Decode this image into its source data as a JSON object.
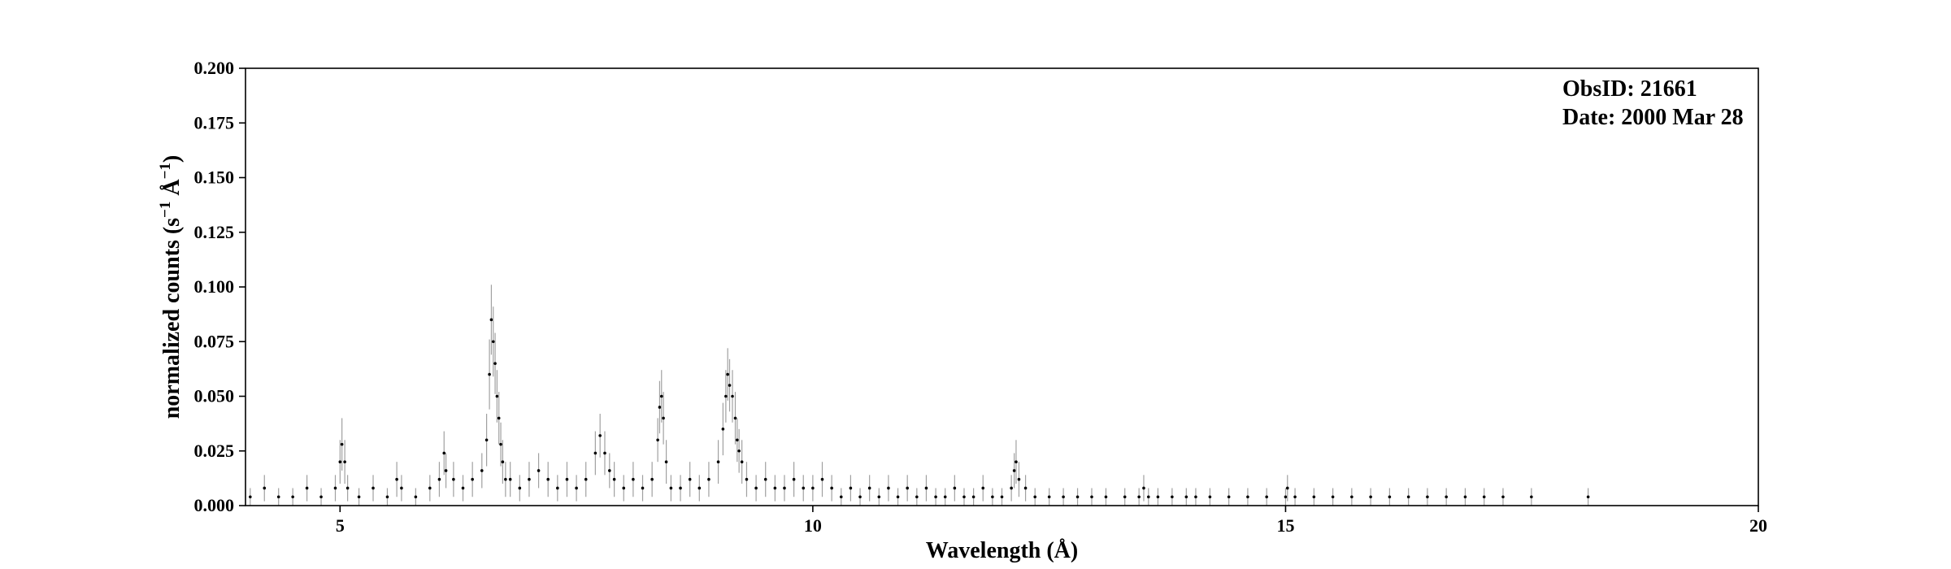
{
  "chart_data": {
    "type": "scatter",
    "title": "",
    "xlabel": "Wavelength (Å)",
    "ylabel_main": "normalized counts (s",
    "ylabel_sup1": "−1",
    "ylabel_mid": " Å",
    "ylabel_sup2": "−1",
    "ylabel_end": ")",
    "xlim": [
      4,
      20
    ],
    "ylim": [
      0,
      0.2
    ],
    "xticks": [
      5,
      10,
      15,
      20
    ],
    "xtick_labels": [
      "5",
      "10",
      "15",
      "20"
    ],
    "yticks": [
      0,
      0.025,
      0.05,
      0.075,
      0.1,
      0.125,
      0.15,
      0.175,
      0.2
    ],
    "ytick_labels": [
      "0.000",
      "0.025",
      "0.050",
      "0.075",
      "0.100",
      "0.125",
      "0.150",
      "0.175",
      "0.200"
    ],
    "annotations": [
      "ObsID: 21661",
      "Date: 2000 Mar 28"
    ],
    "grid": false,
    "point_color": "#000000",
    "errorbar_color": "#a0a0a0",
    "series": [
      {
        "x": [
          4.05,
          4.2,
          4.35,
          4.5,
          4.65,
          4.8,
          4.95,
          5.0,
          5.02,
          5.05,
          5.08,
          5.2,
          5.35,
          5.5,
          5.6,
          5.65,
          5.8,
          5.95,
          6.05,
          6.1,
          6.12,
          6.2,
          6.3,
          6.4,
          6.5,
          6.55,
          6.58,
          6.6,
          6.62,
          6.64,
          6.66,
          6.68,
          6.7,
          6.72,
          6.75,
          6.8,
          6.9,
          7.0,
          7.1,
          7.2,
          7.3,
          7.4,
          7.5,
          7.6,
          7.7,
          7.75,
          7.8,
          7.85,
          7.9,
          8.0,
          8.1,
          8.2,
          8.3,
          8.36,
          8.38,
          8.4,
          8.42,
          8.45,
          8.5,
          8.6,
          8.7,
          8.8,
          8.9,
          9.0,
          9.05,
          9.08,
          9.1,
          9.12,
          9.15,
          9.18,
          9.2,
          9.22,
          9.25,
          9.3,
          9.4,
          9.5,
          9.6,
          9.7,
          9.8,
          9.9,
          10.0,
          10.1,
          10.2,
          10.3,
          10.4,
          10.5,
          10.6,
          10.7,
          10.8,
          10.9,
          11.0,
          11.1,
          11.2,
          11.3,
          11.4,
          11.5,
          11.6,
          11.7,
          11.8,
          11.9,
          12.0,
          12.1,
          12.13,
          12.15,
          12.18,
          12.25,
          12.35,
          12.5,
          12.65,
          12.8,
          12.95,
          13.1,
          13.3,
          13.45,
          13.5,
          13.55,
          13.65,
          13.8,
          13.95,
          14.05,
          14.2,
          14.4,
          14.6,
          14.8,
          15.0,
          15.02,
          15.1,
          15.3,
          15.5,
          15.7,
          15.9,
          16.1,
          16.3,
          16.5,
          16.7,
          16.9,
          17.1,
          17.3,
          17.6,
          18.2
        ],
        "y": [
          0.004,
          0.008,
          0.004,
          0.004,
          0.008,
          0.004,
          0.008,
          0.02,
          0.028,
          0.02,
          0.008,
          0.004,
          0.008,
          0.004,
          0.012,
          0.008,
          0.004,
          0.008,
          0.012,
          0.024,
          0.016,
          0.012,
          0.008,
          0.012,
          0.016,
          0.03,
          0.06,
          0.085,
          0.075,
          0.065,
          0.05,
          0.04,
          0.028,
          0.02,
          0.012,
          0.012,
          0.008,
          0.012,
          0.016,
          0.012,
          0.008,
          0.012,
          0.008,
          0.012,
          0.024,
          0.032,
          0.024,
          0.016,
          0.012,
          0.008,
          0.012,
          0.008,
          0.012,
          0.03,
          0.045,
          0.05,
          0.04,
          0.02,
          0.008,
          0.008,
          0.012,
          0.008,
          0.012,
          0.02,
          0.035,
          0.05,
          0.06,
          0.055,
          0.05,
          0.04,
          0.03,
          0.025,
          0.02,
          0.012,
          0.008,
          0.012,
          0.008,
          0.008,
          0.012,
          0.008,
          0.008,
          0.012,
          0.008,
          0.004,
          0.008,
          0.004,
          0.008,
          0.004,
          0.008,
          0.004,
          0.008,
          0.004,
          0.008,
          0.004,
          0.004,
          0.008,
          0.004,
          0.004,
          0.008,
          0.004,
          0.004,
          0.008,
          0.016,
          0.02,
          0.012,
          0.008,
          0.004,
          0.004,
          0.004,
          0.004,
          0.004,
          0.004,
          0.004,
          0.004,
          0.008,
          0.004,
          0.004,
          0.004,
          0.004,
          0.004,
          0.004,
          0.004,
          0.004,
          0.004,
          0.004,
          0.008,
          0.004,
          0.004,
          0.004,
          0.004,
          0.004,
          0.004,
          0.004,
          0.004,
          0.004,
          0.004,
          0.004,
          0.004,
          0.004,
          0.004
        ],
        "yerr": [
          0.004,
          0.006,
          0.004,
          0.004,
          0.006,
          0.004,
          0.006,
          0.01,
          0.012,
          0.01,
          0.006,
          0.004,
          0.006,
          0.004,
          0.008,
          0.006,
          0.004,
          0.006,
          0.008,
          0.01,
          0.008,
          0.008,
          0.006,
          0.008,
          0.008,
          0.012,
          0.016,
          0.016,
          0.016,
          0.014,
          0.012,
          0.012,
          0.01,
          0.01,
          0.008,
          0.008,
          0.006,
          0.008,
          0.008,
          0.008,
          0.006,
          0.008,
          0.006,
          0.008,
          0.01,
          0.01,
          0.01,
          0.008,
          0.008,
          0.006,
          0.008,
          0.006,
          0.008,
          0.01,
          0.012,
          0.012,
          0.012,
          0.01,
          0.006,
          0.006,
          0.008,
          0.006,
          0.008,
          0.01,
          0.012,
          0.012,
          0.012,
          0.012,
          0.012,
          0.012,
          0.01,
          0.01,
          0.01,
          0.008,
          0.006,
          0.008,
          0.006,
          0.006,
          0.008,
          0.006,
          0.006,
          0.008,
          0.006,
          0.004,
          0.006,
          0.004,
          0.006,
          0.004,
          0.006,
          0.004,
          0.006,
          0.004,
          0.006,
          0.004,
          0.004,
          0.006,
          0.004,
          0.004,
          0.006,
          0.004,
          0.004,
          0.006,
          0.008,
          0.01,
          0.008,
          0.006,
          0.004,
          0.004,
          0.004,
          0.004,
          0.004,
          0.004,
          0.004,
          0.004,
          0.006,
          0.004,
          0.004,
          0.004,
          0.004,
          0.004,
          0.004,
          0.004,
          0.004,
          0.004,
          0.004,
          0.006,
          0.004,
          0.004,
          0.004,
          0.004,
          0.004,
          0.004,
          0.004,
          0.004,
          0.004,
          0.004,
          0.004,
          0.004,
          0.004,
          0.004
        ]
      }
    ]
  }
}
